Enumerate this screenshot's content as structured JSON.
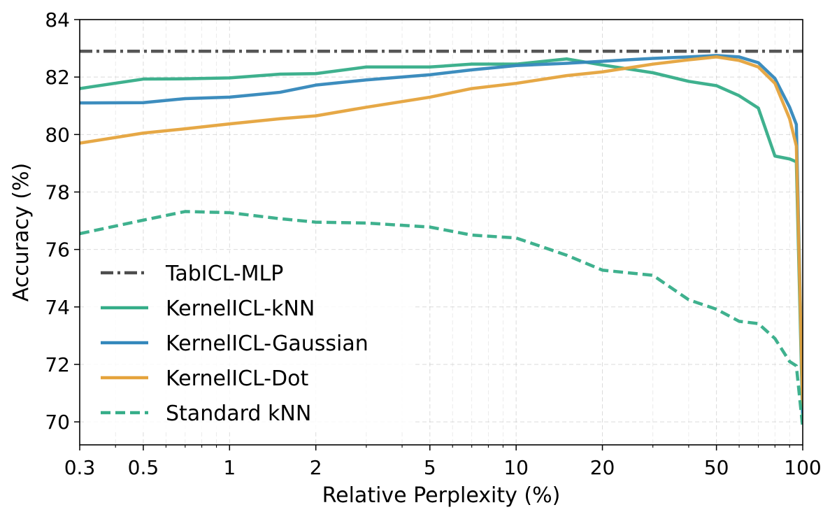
{
  "chart_data": {
    "type": "line",
    "title": "",
    "xlabel": "Relative Perplexity (%)",
    "ylabel": "Accuracy (%)",
    "xscale": "log",
    "xlim": [
      0.3,
      100
    ],
    "ylim": [
      69.2,
      84
    ],
    "xticks": [
      0.3,
      0.5,
      1,
      2,
      5,
      10,
      20,
      50,
      100
    ],
    "xtick_labels": [
      "0.3",
      "0.5",
      "1",
      "2",
      "5",
      "10",
      "20",
      "50",
      "100"
    ],
    "yticks": [
      70,
      72,
      74,
      76,
      78,
      80,
      82,
      84
    ],
    "ytick_labels": [
      "70",
      "72",
      "74",
      "76",
      "78",
      "80",
      "82",
      "84"
    ],
    "grid": true,
    "legend_position": "lower-left",
    "series": [
      {
        "name": "TabICL-MLP",
        "color": "#4d4d4d",
        "style": "dashdot",
        "x": [
          0.3,
          100
        ],
        "y": [
          82.9,
          82.9
        ]
      },
      {
        "name": "KernelICL-kNN",
        "color": "#35ad88",
        "style": "solid",
        "x": [
          0.3,
          0.5,
          0.7,
          1,
          1.5,
          2,
          3,
          5,
          7,
          10,
          15,
          20,
          30,
          40,
          50,
          60,
          70,
          80,
          90,
          95,
          100
        ],
        "y": [
          81.6,
          81.93,
          81.94,
          81.97,
          82.1,
          82.12,
          82.35,
          82.35,
          82.45,
          82.45,
          82.63,
          82.42,
          82.15,
          81.85,
          81.7,
          81.35,
          80.92,
          79.25,
          79.15,
          79.05,
          70.0
        ]
      },
      {
        "name": "KernelICL-Gaussian",
        "color": "#3387bb",
        "style": "solid",
        "x": [
          0.3,
          0.5,
          0.7,
          1,
          1.5,
          2,
          3,
          5,
          7,
          10,
          15,
          20,
          30,
          40,
          50,
          60,
          70,
          80,
          90,
          95,
          100
        ],
        "y": [
          81.1,
          81.11,
          81.25,
          81.3,
          81.47,
          81.72,
          81.9,
          82.08,
          82.25,
          82.4,
          82.48,
          82.55,
          82.65,
          82.7,
          82.75,
          82.7,
          82.5,
          81.95,
          80.95,
          80.35,
          70.3
        ]
      },
      {
        "name": "KernelICL-Dot",
        "color": "#e5a33c",
        "style": "solid",
        "x": [
          0.3,
          0.5,
          0.7,
          1,
          1.5,
          2,
          3,
          5,
          7,
          10,
          15,
          20,
          30,
          40,
          50,
          60,
          70,
          80,
          90,
          95,
          100
        ],
        "y": [
          79.7,
          80.05,
          80.2,
          80.37,
          80.55,
          80.65,
          80.95,
          81.3,
          81.6,
          81.78,
          82.05,
          82.18,
          82.45,
          82.6,
          82.7,
          82.58,
          82.35,
          81.78,
          80.55,
          79.6,
          70.5
        ]
      },
      {
        "name": "Standard kNN",
        "color": "#35ad88",
        "style": "dashed",
        "x": [
          0.3,
          0.5,
          0.7,
          1,
          1.5,
          2,
          3,
          5,
          7,
          10,
          15,
          20,
          30,
          40,
          50,
          60,
          70,
          80,
          90,
          95,
          100
        ],
        "y": [
          76.55,
          77.02,
          77.32,
          77.28,
          77.07,
          76.95,
          76.92,
          76.78,
          76.5,
          76.4,
          75.8,
          75.28,
          75.1,
          74.25,
          73.92,
          73.5,
          73.42,
          72.9,
          72.1,
          71.95,
          69.8
        ]
      }
    ]
  }
}
